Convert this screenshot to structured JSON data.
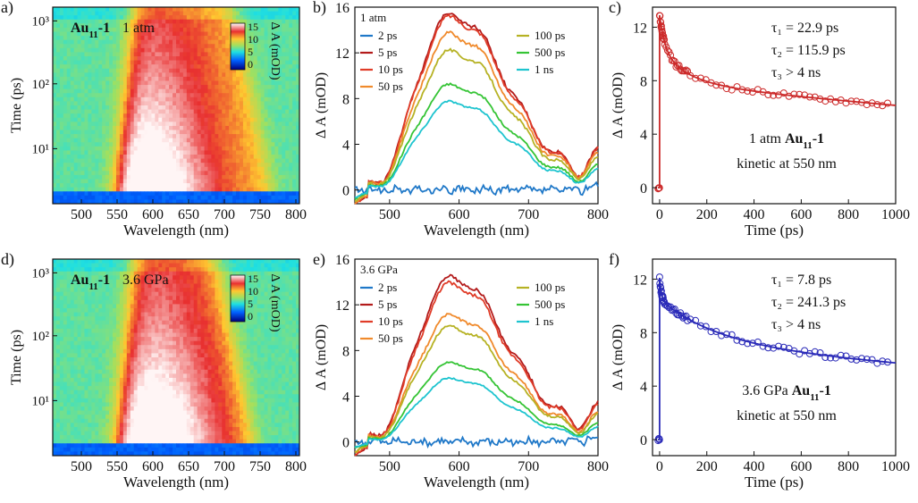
{
  "chart_data": [
    {
      "id": "a",
      "type": "heatmap",
      "panel_label": "a)",
      "sample_label": "Au",
      "sample_sub": "11",
      "sample_suffix": "-1",
      "condition": "1 atm",
      "xlabel": "Wavelength (nm)",
      "ylabel": "Time (ps)",
      "xlim": [
        460,
        805
      ],
      "x_ticks": [
        500,
        550,
        600,
        650,
        700,
        750,
        800
      ],
      "y_scale": "log",
      "y_ticks": [
        "10¹",
        "10²",
        "10³"
      ],
      "colorbar_label": "Δ A (mOD)",
      "colorbar_ticks": [
        "15",
        "10",
        "5",
        "0"
      ],
      "band_range_nm": [
        548,
        770
      ],
      "peak_nm": 590
    },
    {
      "id": "b",
      "type": "line",
      "panel_label": "b)",
      "xlabel": "Wavelength (nm)",
      "ylabel": "Δ A (mOD)",
      "xlim": [
        450,
        800
      ],
      "ylim": [
        -1.2,
        16
      ],
      "x_ticks": [
        500,
        600,
        700,
        800
      ],
      "y_ticks": [
        0,
        4,
        8,
        12,
        16
      ],
      "legend_title": "1 atm",
      "series": [
        {
          "name": "2 ps",
          "color": "#1f78c8",
          "amplitude": 0
        },
        {
          "name": "5 ps",
          "color": "#b31b1b",
          "amplitude": 15.6
        },
        {
          "name": "10 ps",
          "color": "#e03c28",
          "amplitude": 15.3
        },
        {
          "name": "50 ps",
          "color": "#f08a2c",
          "amplitude": 13.8
        },
        {
          "name": "100 ps",
          "color": "#b6b224",
          "amplitude": 12.3
        },
        {
          "name": "500 ps",
          "color": "#35c435",
          "amplitude": 9.3
        },
        {
          "name": "1 ns",
          "color": "#1ec4cf",
          "amplitude": 7.8
        }
      ]
    },
    {
      "id": "c",
      "type": "scatter",
      "panel_label": "c)",
      "xlabel": "Time (ps)",
      "ylabel": "Δ A (mOD)",
      "xlim": [
        -30,
        1000
      ],
      "ylim": [
        -1.2,
        13.5
      ],
      "x_ticks": [
        0,
        200,
        400,
        600,
        800,
        1000
      ],
      "y_ticks": [
        0,
        4,
        8,
        12
      ],
      "color": "#cc2a2a",
      "fit_params": {
        "A1": 2.6,
        "tau1": 22.9,
        "A2": 2.4,
        "tau2": 115.9,
        "A3": 7.9,
        "tau3": 4000
      },
      "annotations": [
        "τ₁ = 22.9 ps",
        "τ₂ = 115.9 ps",
        "τ₃ > 4 ns"
      ],
      "sample_text": {
        "prefix": "1 atm ",
        "label": "Au",
        "sub": "11",
        "suffix": "-1"
      },
      "kinetic_label": "kinetic at 550 nm"
    },
    {
      "id": "d",
      "type": "heatmap",
      "panel_label": "d)",
      "sample_label": "Au",
      "sample_sub": "11",
      "sample_suffix": "-1",
      "condition": "3.6 GPa",
      "xlabel": "Wavelength (nm)",
      "ylabel": "Time (ps)",
      "xlim": [
        460,
        805
      ],
      "x_ticks": [
        500,
        550,
        600,
        650,
        700,
        750,
        800
      ],
      "y_scale": "log",
      "y_ticks": [
        "10¹",
        "10²",
        "10³"
      ],
      "colorbar_label": "Δ A (mOD)",
      "colorbar_ticks": [
        "15",
        "10",
        "5",
        "0"
      ],
      "band_range_nm": [
        548,
        745
      ],
      "peak_nm": 600
    },
    {
      "id": "e",
      "type": "line",
      "panel_label": "e)",
      "xlabel": "Wavelength (nm)",
      "ylabel": "Δ A (mOD)",
      "xlim": [
        450,
        800
      ],
      "ylim": [
        -1.2,
        16
      ],
      "x_ticks": [
        500,
        600,
        700,
        800
      ],
      "y_ticks": [
        0,
        4,
        8,
        12,
        16
      ],
      "legend_title": "3.6 GPa",
      "series": [
        {
          "name": "2 ps",
          "color": "#1f78c8",
          "amplitude": 0
        },
        {
          "name": "5 ps",
          "color": "#b31b1b",
          "amplitude": 14.6
        },
        {
          "name": "10 ps",
          "color": "#e03c28",
          "amplitude": 14.0
        },
        {
          "name": "50 ps",
          "color": "#f08a2c",
          "amplitude": 11.2
        },
        {
          "name": "100 ps",
          "color": "#b6b224",
          "amplitude": 10.2
        },
        {
          "name": "500 ps",
          "color": "#35c435",
          "amplitude": 7.0
        },
        {
          "name": "1 ns",
          "color": "#1ec4cf",
          "amplitude": 5.6
        }
      ]
    },
    {
      "id": "f",
      "type": "scatter",
      "panel_label": "f)",
      "xlabel": "Time (ps)",
      "ylabel": "Δ A (mOD)",
      "xlim": [
        -30,
        1000
      ],
      "ylim": [
        -1.2,
        13.5
      ],
      "x_ticks": [
        0,
        200,
        400,
        600,
        800,
        1000
      ],
      "y_ticks": [
        0,
        4,
        8,
        12
      ],
      "color": "#2a2ab8",
      "fit_params": {
        "A1": 1.6,
        "tau1": 7.8,
        "A2": 3.2,
        "tau2": 241.3,
        "A3": 7.3,
        "tau3": 4000
      },
      "annotations": [
        "τ₁ = 7.8 ps",
        "τ₂ = 241.3 ps",
        "τ₃ > 4 ns"
      ],
      "sample_text": {
        "prefix": "3.6 GPa ",
        "label": "Au",
        "sub": "11",
        "suffix": "-1"
      },
      "kinetic_label": "kinetic at 550 nm"
    }
  ]
}
